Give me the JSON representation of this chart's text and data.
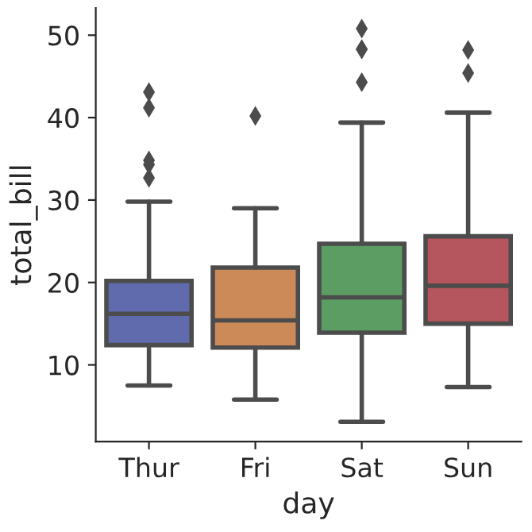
{
  "chart_data": {
    "type": "box",
    "xlabel": "day",
    "ylabel": "total_bill",
    "categories": [
      "Thur",
      "Fri",
      "Sat",
      "Sun"
    ],
    "colors": [
      "#5f6bad",
      "#cc8a58",
      "#5c9d64",
      "#b5555d"
    ],
    "boxes": [
      {
        "low": 7.5,
        "q1": 12.4,
        "median": 16.2,
        "q3": 20.2,
        "high": 29.8,
        "outliers": [
          32.7,
          34.3,
          34.8,
          41.2,
          43.1
        ]
      },
      {
        "low": 5.8,
        "q1": 12.1,
        "median": 15.4,
        "q3": 21.8,
        "high": 29.0,
        "outliers": [
          40.2
        ]
      },
      {
        "low": 3.1,
        "q1": 13.9,
        "median": 18.2,
        "q3": 24.7,
        "high": 39.4,
        "outliers": [
          44.3,
          48.3,
          48.3,
          50.8
        ]
      },
      {
        "low": 7.3,
        "q1": 15.0,
        "median": 19.6,
        "q3": 25.6,
        "high": 40.6,
        "outliers": [
          45.4,
          48.2
        ]
      }
    ],
    "ylim": [
      0.7,
      53.3
    ],
    "yticks": [
      10,
      20,
      30,
      40,
      50
    ],
    "grid": false,
    "marker": "diamond"
  }
}
